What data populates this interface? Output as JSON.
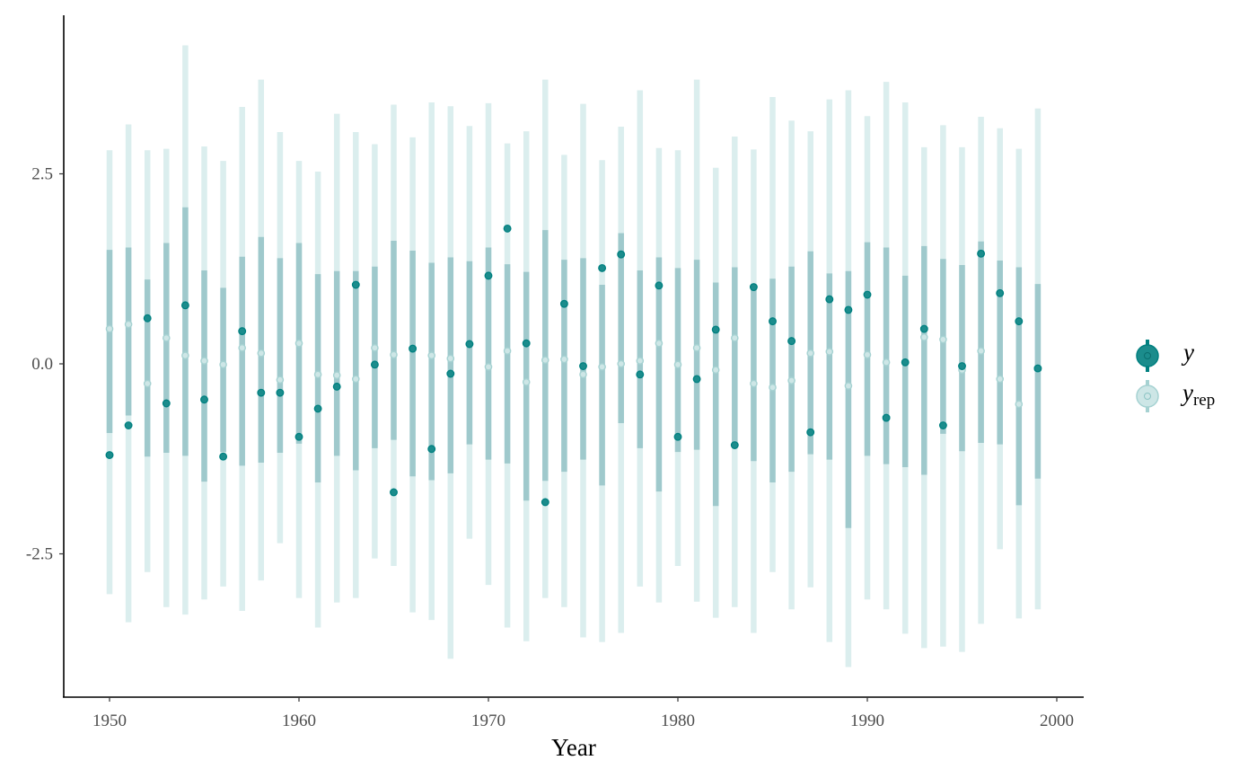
{
  "chart_data": {
    "type": "scatter",
    "xlabel": "Year",
    "ylabel": "",
    "xlim": [
      1947.6,
      2001.4
    ],
    "ylim": [
      -4.3,
      4.6
    ],
    "xticks": [
      1950,
      1960,
      1970,
      1980,
      1990,
      2000
    ],
    "xtick_labels": [
      "1950",
      "1960",
      "1970",
      "1980",
      "1990",
      "2000"
    ],
    "yticks": [
      2.5,
      0.0,
      -2.5
    ],
    "ytick_labels": [
      "2.5",
      "0.0",
      "-2.5"
    ],
    "grid": false,
    "legend": {
      "position": "right",
      "entries": [
        {
          "key": "y",
          "label": "y",
          "subscript": ""
        },
        {
          "key": "yrep",
          "label": "y",
          "subscript": "rep"
        }
      ]
    },
    "colors": {
      "y_point": "#008080",
      "y_point_fill": "#1b8c8c",
      "yrep_point": "#a6d2d2",
      "yrep_point_fill": "#cde6e6",
      "inner_interval": "#9fc9cc",
      "outer_interval": "#dbeeee"
    },
    "years": [
      1950,
      1951,
      1952,
      1953,
      1954,
      1955,
      1956,
      1957,
      1958,
      1959,
      1960,
      1961,
      1962,
      1963,
      1964,
      1965,
      1966,
      1967,
      1968,
      1969,
      1970,
      1971,
      1972,
      1973,
      1974,
      1975,
      1976,
      1977,
      1978,
      1979,
      1980,
      1981,
      1982,
      1983,
      1984,
      1985,
      1986,
      1987,
      1988,
      1989,
      1990,
      1991,
      1992,
      1993,
      1994,
      1995,
      1996,
      1997,
      1998,
      1999
    ],
    "y": [
      -1.2,
      -0.81,
      0.6,
      -0.52,
      0.77,
      -0.47,
      -1.22,
      0.43,
      -0.38,
      -0.38,
      -0.96,
      -0.59,
      -0.3,
      1.04,
      -0.01,
      -1.69,
      0.2,
      -1.12,
      -0.13,
      0.26,
      1.16,
      1.78,
      0.27,
      -1.82,
      0.79,
      -0.03,
      1.26,
      1.44,
      -0.14,
      1.03,
      -0.96,
      -0.2,
      0.45,
      -1.07,
      1.01,
      0.56,
      0.3,
      -0.9,
      0.85,
      0.71,
      0.91,
      -0.71,
      0.02,
      0.46,
      -0.81,
      -0.03,
      1.45,
      0.93,
      0.56,
      -0.06
    ],
    "yrep_median": [
      0.46,
      0.52,
      -0.26,
      0.34,
      0.11,
      0.04,
      -0.01,
      0.21,
      0.14,
      -0.21,
      0.27,
      -0.14,
      -0.15,
      -0.2,
      0.21,
      0.12,
      0.2,
      0.11,
      0.07,
      0.26,
      -0.04,
      0.17,
      -0.24,
      0.05,
      0.06,
      -0.14,
      -0.04,
      0.0,
      0.04,
      0.27,
      -0.01,
      0.21,
      -0.08,
      0.34,
      -0.26,
      -0.31,
      -0.22,
      0.14,
      0.16,
      -0.29,
      0.12,
      0.02,
      0.02,
      0.35,
      0.32,
      -0.08,
      0.17,
      -0.2,
      -0.53,
      -0.07
    ],
    "inner_low": [
      -0.91,
      -0.68,
      -1.22,
      -1.17,
      -1.21,
      -1.55,
      -1.16,
      -1.34,
      -1.3,
      -1.17,
      -1.05,
      -1.56,
      -1.21,
      -1.4,
      -1.11,
      -1.0,
      -1.48,
      -1.53,
      -1.44,
      -1.06,
      -1.26,
      -1.31,
      -1.8,
      -1.54,
      -1.42,
      -1.26,
      -1.6,
      -0.78,
      -1.11,
      -1.68,
      -1.16,
      -1.13,
      -1.87,
      -1.06,
      -1.28,
      -1.56,
      -1.42,
      -1.19,
      -1.26,
      -2.16,
      -1.21,
      -1.32,
      -1.36,
      -1.46,
      -0.92,
      -1.15,
      -1.04,
      -1.06,
      -1.86,
      -1.51
    ],
    "inner_high": [
      1.5,
      1.53,
      1.11,
      1.59,
      2.06,
      1.23,
      1.0,
      1.41,
      1.67,
      1.39,
      1.59,
      1.18,
      1.22,
      1.22,
      1.28,
      1.62,
      1.49,
      1.33,
      1.4,
      1.35,
      1.53,
      1.31,
      1.21,
      1.76,
      1.37,
      1.39,
      1.04,
      1.72,
      1.23,
      1.4,
      1.26,
      1.37,
      1.07,
      1.27,
      1.0,
      1.12,
      1.28,
      1.48,
      1.19,
      1.22,
      1.6,
      1.53,
      1.16,
      1.55,
      1.38,
      1.3,
      1.61,
      1.36,
      1.27,
      1.05
    ],
    "outer_low": [
      -3.03,
      -3.4,
      -2.74,
      -3.2,
      -3.3,
      -3.1,
      -2.93,
      -3.25,
      -2.85,
      -2.36,
      -3.08,
      -3.47,
      -3.14,
      -3.08,
      -2.56,
      -2.66,
      -3.27,
      -3.37,
      -3.88,
      -2.3,
      -2.91,
      -3.47,
      -3.65,
      -3.08,
      -3.2,
      -3.6,
      -3.66,
      -3.54,
      -2.93,
      -3.14,
      -2.66,
      -3.13,
      -3.34,
      -3.2,
      -3.54,
      -2.74,
      -3.23,
      -2.94,
      -3.66,
      -3.99,
      -3.1,
      -3.23,
      -3.55,
      -3.74,
      -3.72,
      -3.79,
      -3.42,
      -2.44,
      -3.35,
      -3.23
    ],
    "outer_high": [
      2.81,
      3.15,
      2.81,
      2.83,
      4.19,
      2.86,
      2.67,
      3.38,
      3.74,
      3.05,
      2.67,
      2.53,
      3.29,
      3.05,
      2.89,
      3.41,
      2.98,
      3.44,
      3.39,
      3.13,
      3.43,
      2.9,
      3.06,
      3.74,
      2.75,
      3.42,
      2.68,
      3.12,
      3.6,
      2.84,
      2.81,
      3.74,
      2.58,
      2.99,
      2.82,
      3.51,
      3.2,
      3.06,
      3.48,
      3.6,
      3.26,
      3.71,
      3.44,
      2.85,
      3.14,
      2.85,
      3.25,
      3.1,
      2.83,
      3.36
    ]
  }
}
